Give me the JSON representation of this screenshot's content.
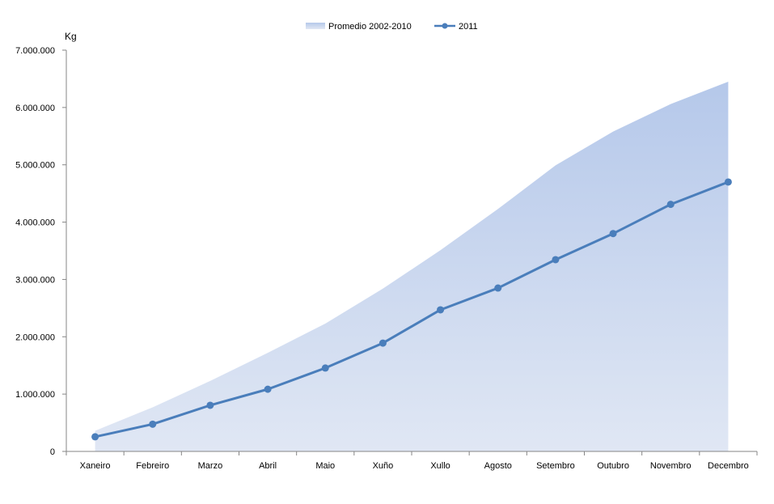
{
  "chart_data": {
    "type": "area",
    "ylabel": "Kg",
    "ylim": [
      0,
      7000000
    ],
    "y_ticks": [
      0,
      1000000,
      2000000,
      3000000,
      4000000,
      5000000,
      6000000,
      7000000
    ],
    "y_tick_labels": [
      "0",
      "1.000.000",
      "2.000.000",
      "3.000.000",
      "4.000.000",
      "5.000.000",
      "6.000.000",
      "7.000.000"
    ],
    "categories": [
      "Xaneiro",
      "Febreiro",
      "Marzo",
      "Abril",
      "Maio",
      "Xuño",
      "Xullo",
      "Agosto",
      "Setembro",
      "Outubro",
      "Novembro",
      "Decembro"
    ],
    "legend_position": "top-center",
    "grid": false,
    "series": [
      {
        "name": "Promedio 2002-2010",
        "type": "area",
        "color": "#b8caea",
        "values": [
          360000,
          770000,
          1230000,
          1720000,
          2230000,
          2840000,
          3510000,
          4230000,
          4990000,
          5580000,
          6060000,
          6450000
        ]
      },
      {
        "name": "2011",
        "type": "line",
        "color": "#4a7ebb",
        "values": [
          255000,
          475000,
          805000,
          1085000,
          1455000,
          1890000,
          2470000,
          2850000,
          3345000,
          3800000,
          4310000,
          4700000
        ]
      }
    ]
  }
}
